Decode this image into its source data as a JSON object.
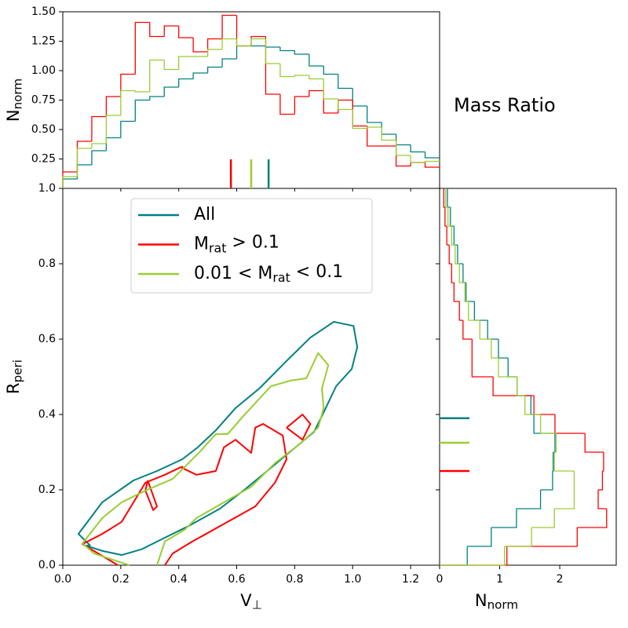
{
  "chart_data": [
    {
      "type": "histogram",
      "orientation": "vertical",
      "ylabel": "N_{norm}",
      "ylim": [
        0,
        1.5
      ],
      "yticks": [
        0.25,
        {
          "value": 0.5,
          "label": "0.50"
        },
        0.75,
        {
          "value": 1.0,
          "label": "1.00"
        },
        1.25,
        {
          "value": 1.5,
          "label": "1.50"
        }
      ],
      "bins": [
        0,
        0.05,
        0.1,
        0.15,
        0.2,
        0.25,
        0.3,
        0.35,
        0.4,
        0.45,
        0.5,
        0.55,
        0.6,
        0.65,
        0.7,
        0.75,
        0.8,
        0.85,
        0.9,
        0.95,
        1.0,
        1.05,
        1.1,
        1.15,
        1.2,
        1.25,
        1.3
      ],
      "series": [
        {
          "color": "#008080",
          "median": 0.71,
          "values": [
            0.08,
            0.2,
            0.32,
            0.43,
            0.57,
            0.75,
            0.78,
            0.86,
            0.93,
            0.98,
            1.03,
            1.1,
            1.21,
            1.21,
            1.2,
            1.17,
            1.14,
            1.04,
            0.97,
            0.85,
            0.7,
            0.56,
            0.46,
            0.37,
            0.31,
            0.26
          ]
        },
        {
          "color": "#ff0000",
          "median": 0.58,
          "values": [
            0.14,
            0.4,
            0.61,
            0.78,
            0.97,
            1.41,
            1.29,
            1.38,
            1.28,
            1.16,
            1.27,
            1.47,
            1.21,
            1.29,
            0.8,
            0.63,
            0.78,
            0.83,
            0.64,
            0.75,
            0.53,
            0.36,
            0.36,
            0.19,
            0.22,
            0.18
          ]
        },
        {
          "color": "#9acd32",
          "median": 0.65,
          "values": [
            0.1,
            0.34,
            0.38,
            0.62,
            0.83,
            0.82,
            1.09,
            1.01,
            1.12,
            1.12,
            1.18,
            1.27,
            1.21,
            1.27,
            1.06,
            0.95,
            0.96,
            0.93,
            0.76,
            0.67,
            0.51,
            0.52,
            0.41,
            0.28,
            0.22,
            0.23
          ]
        }
      ]
    },
    {
      "type": "contour",
      "title": "Mass Ratio",
      "xlabel": "V_{⊥}",
      "ylabel": "R_{peri}",
      "xlim": [
        0,
        1.3
      ],
      "ylim": [
        0,
        1.0
      ],
      "xticks": [
        {
          "value": 0.0,
          "label": "0.0"
        },
        0.2,
        0.4,
        0.6,
        0.8,
        {
          "value": 1.0,
          "label": "1.0"
        },
        1.2
      ],
      "yticks": [
        {
          "value": 0.0,
          "label": "0.0"
        },
        0.2,
        0.4,
        0.6,
        0.8,
        {
          "value": 1.0,
          "label": "1.0"
        }
      ],
      "legend": "upper center",
      "series": [
        {
          "name": "All",
          "color": "#008080",
          "lines": [
            {
              "x": [
                0.095,
                0.054,
                0.136,
                0.244,
                0.325,
                0.412,
                0.466,
                0.528,
                0.596,
                0.678,
                0.772,
                0.854,
                0.935,
                1.003,
                1.016,
                0.997,
                0.943,
                0.894,
                0.867,
                0.786,
                0.705,
                0.623,
                0.542,
                0.434,
                0.352,
                0.271,
                0.203,
                0.136,
                0.081,
                0.095
              ],
              "y": [
                0.052,
                0.083,
                0.167,
                0.225,
                0.25,
                0.281,
                0.313,
                0.358,
                0.417,
                0.469,
                0.542,
                0.604,
                0.646,
                0.635,
                0.579,
                0.521,
                0.475,
                0.396,
                0.354,
                0.302,
                0.25,
                0.198,
                0.15,
                0.104,
                0.073,
                0.042,
                0.027,
                0.038,
                0.052,
                0.052
              ]
            }
          ]
        },
        {
          "name": "M_{rat} > 0.1",
          "color": "#ff0000",
          "lines": [
            {
              "x": [
                0.19,
                0.068,
                0.136,
                0.203,
                0.244,
                0.285,
                0.352,
                0.407,
                0.461,
                0.528,
                0.556,
                0.596,
                0.65,
                0.664,
                0.691,
                0.759,
                0.772,
                0.732,
                0.664,
                0.569,
                0.447,
                0.379,
                0.352
              ],
              "y": [
                0.0,
                0.056,
                0.083,
                0.115,
                0.167,
                0.219,
                0.24,
                0.26,
                0.24,
                0.25,
                0.313,
                0.333,
                0.298,
                0.365,
                0.375,
                0.344,
                0.281,
                0.219,
                0.156,
                0.115,
                0.063,
                0.031,
                0.0
              ]
            },
            {
              "x": [
                0.293,
                0.325,
                0.312,
                0.285,
                0.293
              ],
              "y": [
                0.225,
                0.156,
                0.146,
                0.198,
                0.225
              ]
            },
            {
              "x": [
                0.772,
                0.827,
                0.854,
                0.827,
                0.772
              ],
              "y": [
                0.365,
                0.4,
                0.375,
                0.333,
                0.365
              ]
            },
            {
              "x": [
                0.41,
                0.414
              ],
              "y": [
                0.258,
                0.263
              ]
            }
          ]
        },
        {
          "name": "0.01 < M_{rat} < 0.1",
          "color": "#9acd32",
          "lines": [
            {
              "x": [
                0.068,
                0.136,
                0.203,
                0.285,
                0.379,
                0.474,
                0.528,
                0.569,
                0.623,
                0.718,
                0.786,
                0.84,
                0.881,
                0.916,
                0.894,
                0.9,
                0.881,
                0.813,
                0.732,
                0.65,
                0.556,
                0.461,
                0.42,
                0.352,
                0.325
              ],
              "y": [
                0.058,
                0.125,
                0.167,
                0.198,
                0.229,
                0.302,
                0.348,
                0.348,
                0.396,
                0.475,
                0.49,
                0.496,
                0.563,
                0.531,
                0.469,
                0.417,
                0.365,
                0.319,
                0.271,
                0.208,
                0.167,
                0.125,
                0.094,
                0.063,
                0.0
              ]
            },
            {
              "x": [
                0.23,
                0.19,
                0.108,
                0.068
              ],
              "y": [
                0.0,
                0.01,
                0.031,
                0.058
              ]
            }
          ]
        }
      ]
    },
    {
      "type": "histogram",
      "orientation": "horizontal",
      "xlabel": "N_{norm}",
      "xlim": [
        0,
        2.94
      ],
      "xticks": [
        0,
        1,
        2
      ],
      "bins": [
        0,
        0.05,
        0.1,
        0.15,
        0.2,
        0.25,
        0.3,
        0.35,
        0.4,
        0.45,
        0.5,
        0.55,
        0.6,
        0.65,
        0.7,
        0.75,
        0.8,
        0.85,
        0.9,
        0.95,
        1.0
      ],
      "series": [
        {
          "color": "#008080",
          "median": 0.39,
          "values": [
            0.46,
            0.86,
            1.28,
            1.68,
            1.88,
            1.89,
            1.92,
            1.57,
            1.52,
            1.29,
            1.14,
            0.98,
            0.8,
            0.58,
            0.44,
            0.39,
            0.3,
            0.24,
            0.18,
            0.13
          ]
        },
        {
          "color": "#ff0000",
          "median": 0.25,
          "values": [
            1.12,
            2.29,
            2.78,
            2.64,
            2.71,
            2.73,
            2.42,
            1.92,
            1.57,
            0.89,
            0.54,
            0.54,
            0.39,
            0.33,
            0.24,
            0.2,
            0.16,
            0.12,
            0.09,
            0.07
          ]
        },
        {
          "color": "#9acd32",
          "median": 0.325,
          "values": [
            1.08,
            1.53,
            1.91,
            2.24,
            2.24,
            1.91,
            1.94,
            1.68,
            1.42,
            1.29,
            0.98,
            0.86,
            0.67,
            0.48,
            0.42,
            0.33,
            0.26,
            0.2,
            0.14,
            0.1
          ]
        }
      ]
    }
  ]
}
